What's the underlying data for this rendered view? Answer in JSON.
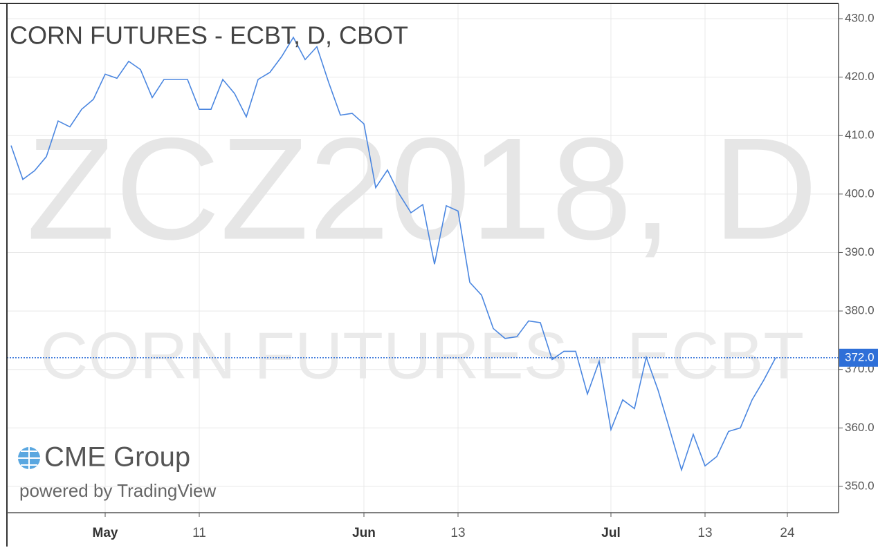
{
  "chart_data": {
    "type": "line",
    "title": "CORN FUTURES - ECBT, D, CBOT",
    "watermark": "ZCZ2018, D",
    "watermark_subtitle": "CORN FUTURES - ECBT",
    "brand": "CME Group",
    "powered_by": "powered by TradingView",
    "categories": [
      null,
      null,
      null,
      null,
      null,
      null,
      null,
      null,
      "May",
      null,
      null,
      null,
      null,
      null,
      null,
      null,
      "11",
      null,
      null,
      null,
      null,
      null,
      null,
      null,
      null,
      null,
      null,
      null,
      null,
      null,
      "Jun",
      null,
      null,
      null,
      null,
      null,
      null,
      null,
      "13",
      null,
      null,
      null,
      null,
      null,
      null,
      null,
      null,
      null,
      null,
      null,
      null,
      "Jul",
      null,
      null,
      null,
      null,
      null,
      null,
      null,
      "13",
      null,
      null,
      null,
      null,
      null,
      null,
      "24",
      null,
      null,
      null,
      null
    ],
    "series": [
      {
        "color": "#4a86e0",
        "values": [
          408.3,
          402.5,
          404,
          406.4,
          412.5,
          411.5,
          414.5,
          416.2,
          420.5,
          419.8,
          422.7,
          421.3,
          416.5,
          419.6,
          419.6,
          419.6,
          414.5,
          414.5,
          419.6,
          417.2,
          413.2,
          419.6,
          420.8,
          423.5,
          426.8,
          423,
          425.2,
          419.1,
          413.5,
          413.8,
          412,
          401.1,
          404.1,
          400,
          396.8,
          398.2,
          388,
          398,
          397.1,
          384.9,
          382.7,
          377,
          375.3,
          375.6,
          378.3,
          378,
          371.7,
          373.1,
          373.1,
          365.8,
          371.4,
          359.7,
          364.8,
          363.3,
          372.1,
          366.5,
          359.7,
          352.8,
          358.9,
          353.5,
          355.1,
          359.4,
          360,
          364.8,
          368.2,
          372,
          null,
          null,
          null,
          null,
          null
        ]
      }
    ],
    "ylim": [
      345.5,
      432.6
    ],
    "yticks": [
      {
        "value": 350,
        "label": "350.0"
      },
      {
        "value": 360,
        "label": "360.0"
      },
      {
        "value": 370,
        "label": "370.0"
      },
      {
        "value": 380,
        "label": "380.0"
      },
      {
        "value": 390,
        "label": "390.0"
      },
      {
        "value": 400,
        "label": "400.0"
      },
      {
        "value": 410,
        "label": "410.0"
      },
      {
        "value": 420,
        "label": "420.0"
      },
      {
        "value": 430,
        "label": "430.0"
      }
    ],
    "last_price": {
      "value": 372,
      "label": "372.0",
      "color": "#2e6fd8"
    },
    "grid": true
  }
}
